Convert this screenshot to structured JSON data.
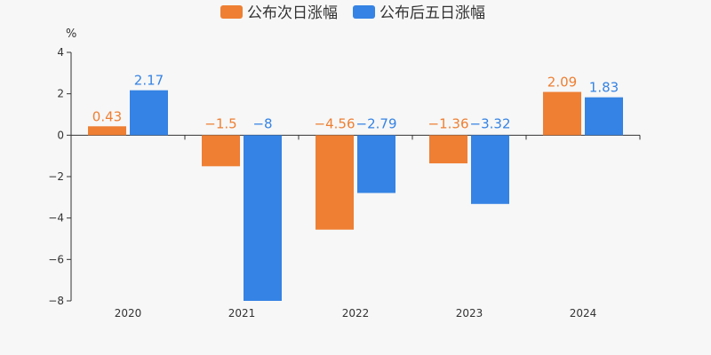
{
  "chart_data": {
    "type": "bar",
    "categories": [
      "2020",
      "2021",
      "2022",
      "2023",
      "2024"
    ],
    "series": [
      {
        "name": "公布次日涨幅",
        "color": "#ee7f33",
        "values": [
          0.43,
          -1.5,
          -4.56,
          -1.36,
          2.09
        ],
        "labels": [
          "0.43",
          "−1.5",
          "−4.56",
          "−1.36",
          "2.09"
        ]
      },
      {
        "name": "公布后五日涨幅",
        "color": "#3583e4",
        "values": [
          2.17,
          -8,
          -2.79,
          -3.32,
          1.83
        ],
        "labels": [
          "2.17",
          "−8",
          "−2.79",
          "−3.32",
          "1.83"
        ]
      }
    ],
    "ylabel": "%",
    "ylim": [
      -8,
      4
    ],
    "yticks": [
      4,
      2,
      0,
      -2,
      -4,
      -6,
      -8
    ],
    "ytick_labels": [
      "4",
      "2",
      "0",
      "−2",
      "−4",
      "−6",
      "−8"
    ],
    "legend": "top-center",
    "grid": false
  }
}
